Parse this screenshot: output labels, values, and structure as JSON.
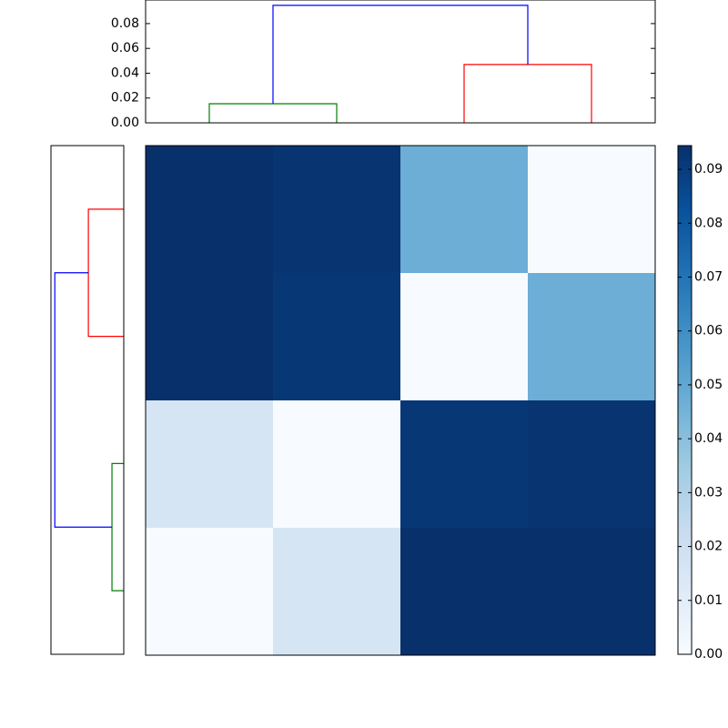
{
  "chart_data": [
    {
      "type": "dendrogram",
      "orientation": "top",
      "xlim": [
        -0.5,
        3.5
      ],
      "ylim": [
        0,
        0.099
      ],
      "yticks": [
        {
          "value": 0,
          "label": "0.00"
        },
        {
          "value": 0.02,
          "label": "0.02"
        },
        {
          "value": 0.04,
          "label": "0.04"
        },
        {
          "value": 0.06,
          "label": "0.06"
        },
        {
          "value": 0.08,
          "label": "0.08"
        }
      ],
      "links": [
        {
          "color": "#008000",
          "positions": [
            0,
            0,
            1,
            1
          ],
          "heights": [
            0,
            0.0154,
            0.0154,
            0
          ]
        },
        {
          "color": "#ff0000",
          "positions": [
            2,
            2,
            3,
            3
          ],
          "heights": [
            0,
            0.047,
            0.047,
            0
          ]
        },
        {
          "color": "#0000ff",
          "positions": [
            0.5,
            0.5,
            2.5,
            2.5
          ],
          "heights": [
            0.0154,
            0.0947,
            0.0947,
            0.047
          ]
        }
      ]
    },
    {
      "type": "dendrogram",
      "orientation": "left",
      "xlim": [
        0.1,
        0
      ],
      "ylim": [
        3.5,
        -0.5
      ],
      "links": [
        {
          "color": "#ff0000",
          "positions": [
            0,
            0,
            1,
            1
          ],
          "heights": [
            0,
            0.0486,
            0.0486,
            0
          ]
        },
        {
          "color": "#008000",
          "positions": [
            2,
            2,
            3,
            3
          ],
          "heights": [
            0,
            0.0162,
            0.0162,
            0
          ]
        },
        {
          "color": "#0000ff",
          "positions": [
            0.5,
            0.5,
            2.5,
            2.5
          ],
          "heights": [
            0.0486,
            0.0947,
            0.0947,
            0.0162
          ]
        }
      ]
    },
    {
      "type": "heatmap",
      "colormap": "Blues",
      "values": [
        [
          0.095,
          0.093,
          0.047,
          0
        ],
        [
          0.095,
          0.092,
          0,
          0.047
        ],
        [
          0.016,
          0,
          0.092,
          0.093
        ],
        [
          0,
          0.016,
          0.095,
          0.095
        ]
      ],
      "vlim": [
        0,
        0.0944
      ],
      "colorbar_ticks": [
        {
          "value": 0,
          "label": "0.00"
        },
        {
          "value": 0.01,
          "label": "0.01"
        },
        {
          "value": 0.02,
          "label": "0.02"
        },
        {
          "value": 0.03,
          "label": "0.03"
        },
        {
          "value": 0.04,
          "label": "0.04"
        },
        {
          "value": 0.05,
          "label": "0.05"
        },
        {
          "value": 0.06,
          "label": "0.06"
        },
        {
          "value": 0.07,
          "label": "0.07"
        },
        {
          "value": 0.08,
          "label": "0.08"
        },
        {
          "value": 0.09,
          "label": "0.09"
        }
      ]
    }
  ]
}
